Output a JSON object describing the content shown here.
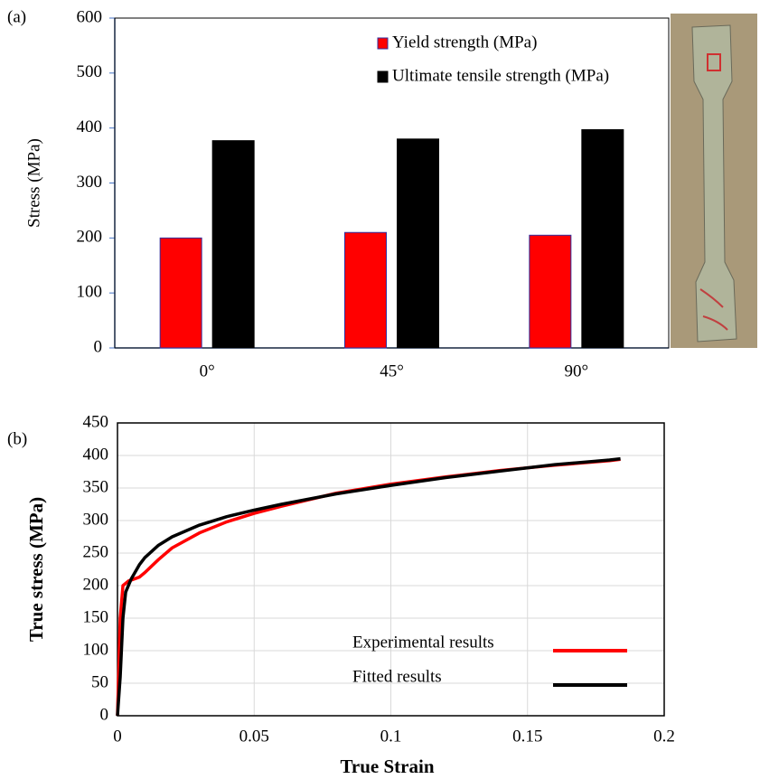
{
  "panel_labels": [
    "(a)",
    "(b)"
  ],
  "chart_data": [
    {
      "type": "bar",
      "ylabel": "Stress (MPa)",
      "categories": [
        "0°",
        "45°",
        "90°"
      ],
      "series": [
        {
          "name": "Yield strength (MPa)",
          "color": "#ff0000",
          "values": [
            200,
            210,
            205
          ]
        },
        {
          "name": "Ultimate tensile strength (MPa)",
          "color": "#000000",
          "values": [
            377,
            380,
            397
          ]
        }
      ],
      "ylim": [
        0,
        600
      ],
      "yticks": [
        0,
        100,
        200,
        300,
        400,
        500,
        600
      ],
      "grid": false,
      "legend": "upper right"
    },
    {
      "type": "line",
      "xlabel": "True Strain",
      "ylabel": "True stress (MPa)",
      "series": [
        {
          "name": "Experimental results",
          "color": "#ff0000",
          "x": [
            0,
            0.001,
            0.002,
            0.004,
            0.006,
            0.008,
            0.01,
            0.015,
            0.02,
            0.03,
            0.04,
            0.05,
            0.06,
            0.08,
            0.1,
            0.12,
            0.14,
            0.16,
            0.18,
            0.184
          ],
          "values": [
            0,
            150,
            200,
            207,
            210,
            213,
            220,
            240,
            258,
            281,
            298,
            311,
            322,
            342,
            356,
            367,
            377,
            385,
            392,
            394
          ]
        },
        {
          "name": "Fitted results",
          "color": "#000000",
          "x": [
            0,
            0.001,
            0.002,
            0.003,
            0.005,
            0.008,
            0.01,
            0.015,
            0.02,
            0.03,
            0.04,
            0.05,
            0.06,
            0.08,
            0.1,
            0.12,
            0.14,
            0.16,
            0.18,
            0.184
          ],
          "values": [
            0,
            60,
            150,
            190,
            210,
            232,
            243,
            262,
            275,
            293,
            306,
            316,
            325,
            341,
            354,
            366,
            376,
            386,
            393,
            395
          ]
        }
      ],
      "xlim": [
        0,
        0.2
      ],
      "xticks": [
        0,
        0.05,
        0.1,
        0.15,
        0.2
      ],
      "ylim": [
        0,
        450
      ],
      "yticks": [
        0,
        50,
        100,
        150,
        200,
        250,
        300,
        350,
        400,
        450
      ],
      "grid": true,
      "legend": "lower right"
    }
  ]
}
